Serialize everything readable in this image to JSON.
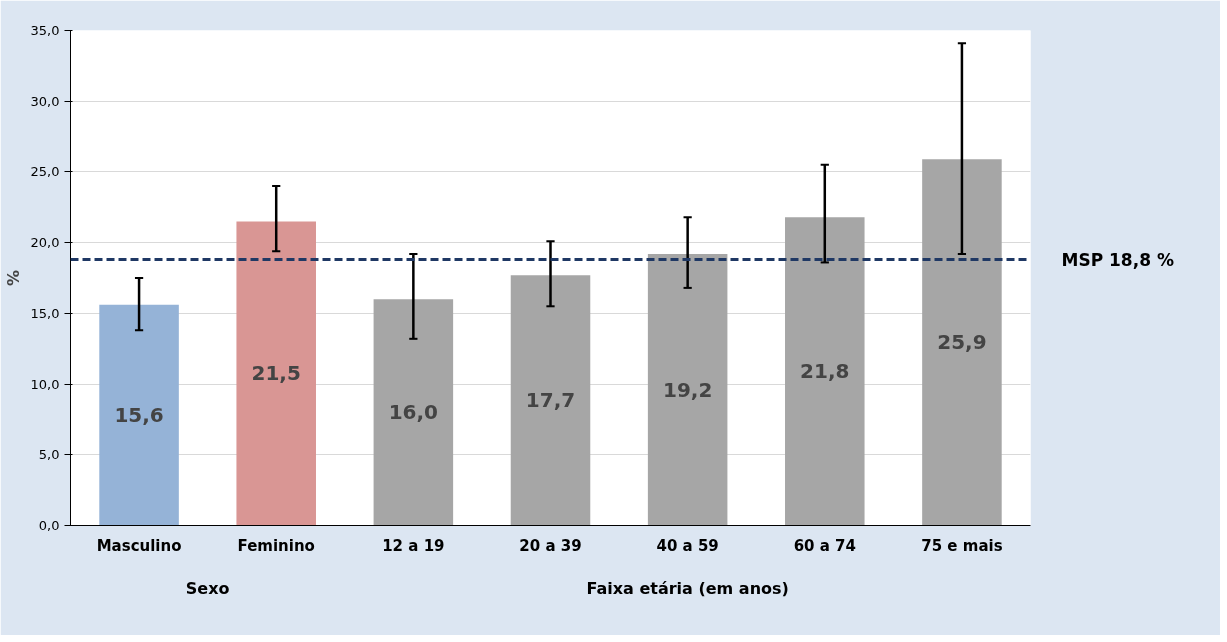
{
  "chart_data": {
    "type": "bar",
    "ylabel": "%",
    "categories": [
      "Masculino",
      "Feminino",
      "12 a 19",
      "20 a 39",
      "40 a 59",
      "60 a 74",
      "75 e mais"
    ],
    "values": [
      15.6,
      21.5,
      16.0,
      17.7,
      19.2,
      21.8,
      25.9
    ],
    "colors": [
      "#95b3d7",
      "#d99694",
      "#a6a6a6",
      "#a6a6a6",
      "#a6a6a6",
      "#a6a6a6",
      "#a6a6a6"
    ],
    "value_labels": [
      "15,6",
      "21,5",
      "16,0",
      "17,7",
      "19,2",
      "21,8",
      "25,9"
    ],
    "errors": [
      [
        13.8,
        17.5
      ],
      [
        19.4,
        24.0
      ],
      [
        13.2,
        19.2
      ],
      [
        15.5,
        20.1
      ],
      [
        16.8,
        21.8
      ],
      [
        18.6,
        25.5
      ],
      [
        19.2,
        34.1
      ]
    ],
    "ylim": [
      0,
      35
    ],
    "yticks": [
      {
        "value": 0,
        "label": "0,0"
      },
      {
        "value": 5,
        "label": "5,0"
      },
      {
        "value": 10,
        "label": "10,0"
      },
      {
        "value": 15,
        "label": "15,0"
      },
      {
        "value": 20,
        "label": "20,0"
      },
      {
        "value": 25,
        "label": "25,0"
      },
      {
        "value": 30,
        "label": "30,0"
      },
      {
        "value": 35,
        "label": "35,0"
      }
    ],
    "grid": "y",
    "ref_lines": [
      {
        "axis": "y",
        "value": 18.8,
        "label": "MSP 18,8 %",
        "color": "#1f3864",
        "line_style": "dashed"
      }
    ],
    "annotations": [
      {
        "text": "Sexo"
      },
      {
        "text": "Faixa etária (em anos)"
      }
    ]
  }
}
